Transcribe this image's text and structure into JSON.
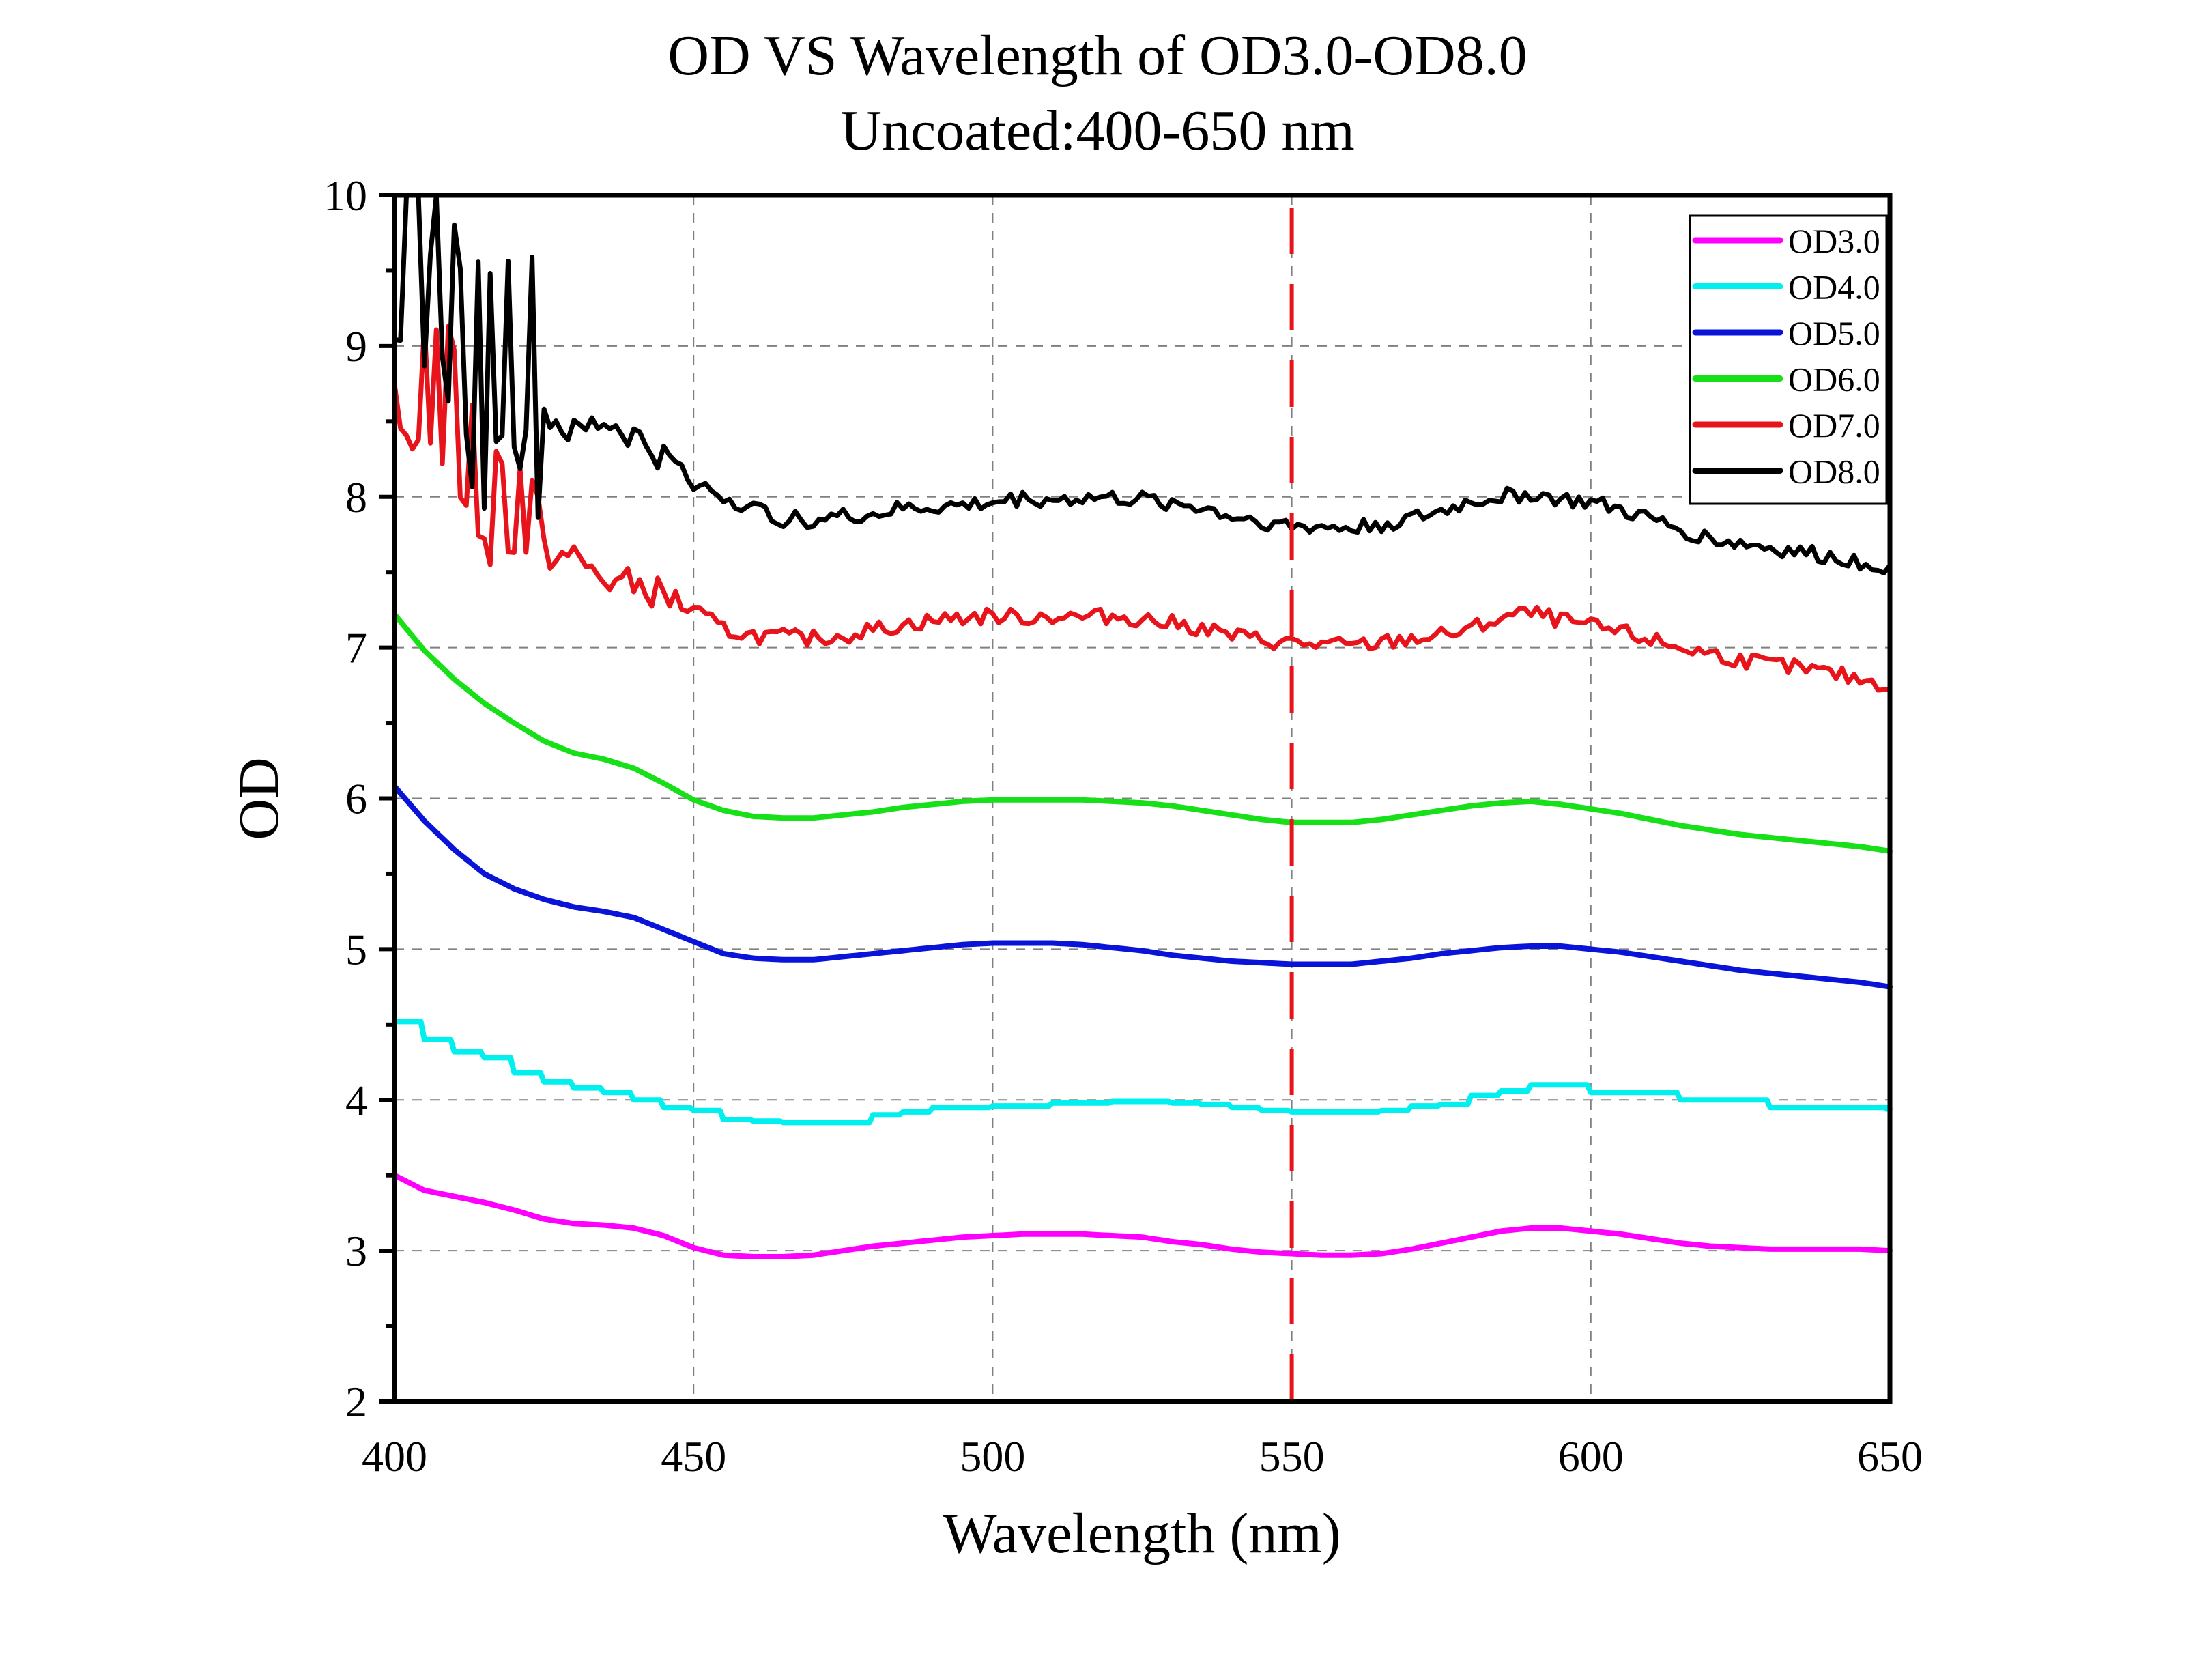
{
  "chart_data": {
    "type": "line",
    "title": "OD VS Wavelength of OD3.0-OD8.0",
    "subtitle": "Uncoated:400-650 nm",
    "xlabel": "Wavelength (nm)",
    "ylabel": "OD",
    "xlim": [
      400,
      650
    ],
    "ylim": [
      2,
      10
    ],
    "xticks": [
      400,
      450,
      500,
      550,
      600,
      650
    ],
    "yticks": [
      2,
      3,
      4,
      5,
      6,
      7,
      8,
      9,
      10
    ],
    "xtick_labels": [
      "400",
      "450",
      "500",
      "550",
      "600",
      "650"
    ],
    "ytick_labels": [
      "2",
      "3",
      "4",
      "5",
      "6",
      "7",
      "8",
      "9",
      "10"
    ],
    "grid": true,
    "legend_position": "top-right",
    "reference_line": {
      "x": 550,
      "color": "#e8141c",
      "style": "dashed"
    },
    "x": [
      400,
      405,
      410,
      415,
      420,
      425,
      430,
      435,
      440,
      445,
      450,
      455,
      460,
      465,
      470,
      475,
      480,
      485,
      490,
      495,
      500,
      505,
      510,
      515,
      520,
      525,
      530,
      535,
      540,
      545,
      550,
      555,
      560,
      565,
      570,
      575,
      580,
      585,
      590,
      595,
      600,
      605,
      610,
      615,
      620,
      625,
      630,
      635,
      640,
      645,
      650
    ],
    "series": [
      {
        "name": "OD3.0",
        "color": "#ff00ff",
        "values": [
          3.5,
          3.4,
          3.36,
          3.32,
          3.27,
          3.21,
          3.18,
          3.17,
          3.15,
          3.1,
          3.02,
          2.97,
          2.96,
          2.96,
          2.97,
          3.0,
          3.03,
          3.05,
          3.07,
          3.09,
          3.1,
          3.11,
          3.11,
          3.11,
          3.1,
          3.09,
          3.06,
          3.04,
          3.01,
          2.99,
          2.98,
          2.97,
          2.97,
          2.98,
          3.01,
          3.05,
          3.09,
          3.13,
          3.15,
          3.15,
          3.13,
          3.11,
          3.08,
          3.05,
          3.03,
          3.02,
          3.01,
          3.01,
          3.01,
          3.01,
          3.0
        ]
      },
      {
        "name": "OD4.0",
        "color": "#00f0f0",
        "values": [
          4.52,
          4.4,
          4.32,
          4.28,
          4.18,
          4.12,
          4.08,
          4.05,
          4.0,
          3.95,
          3.93,
          3.87,
          3.86,
          3.85,
          3.85,
          3.85,
          3.9,
          3.92,
          3.95,
          3.95,
          3.96,
          3.96,
          3.98,
          3.98,
          3.99,
          3.99,
          3.98,
          3.97,
          3.95,
          3.93,
          3.92,
          3.92,
          3.92,
          3.93,
          3.96,
          3.97,
          4.03,
          4.06,
          4.1,
          4.1,
          4.05,
          4.05,
          4.05,
          4.0,
          4.0,
          4.0,
          3.95,
          3.95,
          3.95,
          3.95,
          3.94
        ]
      },
      {
        "name": "OD5.0",
        "color": "#0a14d8",
        "values": [
          6.08,
          5.85,
          5.66,
          5.5,
          5.4,
          5.33,
          5.28,
          5.25,
          5.21,
          5.13,
          5.05,
          4.97,
          4.94,
          4.93,
          4.93,
          4.95,
          4.97,
          4.99,
          5.01,
          5.03,
          5.04,
          5.04,
          5.04,
          5.03,
          5.01,
          4.99,
          4.96,
          4.94,
          4.92,
          4.91,
          4.9,
          4.9,
          4.9,
          4.92,
          4.94,
          4.97,
          4.99,
          5.01,
          5.02,
          5.02,
          5.0,
          4.98,
          4.95,
          4.92,
          4.89,
          4.86,
          4.84,
          4.82,
          4.8,
          4.78,
          4.75
        ]
      },
      {
        "name": "OD6.0",
        "color": "#18e018",
        "values": [
          7.22,
          6.98,
          6.79,
          6.63,
          6.5,
          6.38,
          6.3,
          6.26,
          6.2,
          6.1,
          5.99,
          5.92,
          5.88,
          5.87,
          5.87,
          5.89,
          5.91,
          5.94,
          5.96,
          5.98,
          5.99,
          5.99,
          5.99,
          5.99,
          5.98,
          5.97,
          5.95,
          5.92,
          5.89,
          5.86,
          5.84,
          5.84,
          5.84,
          5.86,
          5.89,
          5.92,
          5.95,
          5.97,
          5.98,
          5.96,
          5.93,
          5.9,
          5.86,
          5.82,
          5.79,
          5.76,
          5.74,
          5.72,
          5.7,
          5.68,
          5.65
        ]
      },
      {
        "name": "OD7.0",
        "color": "#e8141c",
        "values": [
          8.15,
          8.9,
          8.5,
          7.95,
          8.1,
          7.62,
          7.6,
          7.45,
          7.42,
          7.35,
          7.25,
          7.12,
          7.08,
          7.07,
          7.06,
          7.08,
          7.12,
          7.15,
          7.18,
          7.2,
          7.21,
          7.2,
          7.21,
          7.2,
          7.21,
          7.19,
          7.16,
          7.13,
          7.08,
          7.05,
          7.03,
          7.02,
          7.01,
          7.03,
          7.06,
          7.08,
          7.12,
          7.2,
          7.23,
          7.18,
          7.14,
          7.1,
          7.05,
          7.0,
          6.96,
          6.92,
          6.89,
          6.86,
          6.83,
          6.79,
          6.75
        ]
      },
      {
        "name": "OD8.0",
        "color": "#000000",
        "values": [
          9.9,
          9.6,
          9.2,
          8.7,
          9.0,
          8.55,
          8.4,
          8.5,
          8.4,
          8.25,
          8.1,
          8.0,
          7.92,
          7.85,
          7.85,
          7.87,
          7.88,
          7.92,
          7.93,
          7.94,
          7.96,
          7.99,
          7.98,
          7.99,
          7.99,
          7.98,
          7.96,
          7.93,
          7.87,
          7.84,
          7.8,
          7.8,
          7.79,
          7.82,
          7.85,
          7.9,
          7.97,
          8.0,
          8.02,
          7.98,
          7.96,
          7.91,
          7.85,
          7.78,
          7.72,
          7.69,
          7.66,
          7.63,
          7.6,
          7.57,
          7.54
        ]
      }
    ]
  }
}
